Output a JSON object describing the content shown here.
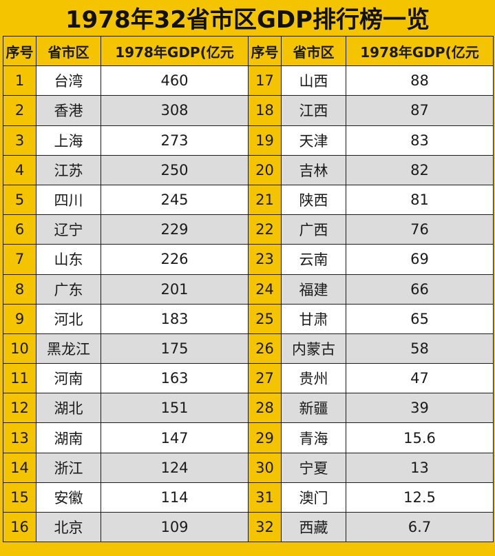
{
  "title": "1978年32省市区GDP排行榜一览",
  "headers": {
    "rank": "序号",
    "province": "省市区",
    "gdp": "1978年GDP(亿元"
  },
  "table": {
    "rows": [
      {
        "left": {
          "rank": "1",
          "province": "台湾",
          "gdp": "460"
        },
        "right": {
          "rank": "17",
          "province": "山西",
          "gdp": "88"
        }
      },
      {
        "left": {
          "rank": "2",
          "province": "香港",
          "gdp": "308"
        },
        "right": {
          "rank": "18",
          "province": "江西",
          "gdp": "87"
        }
      },
      {
        "left": {
          "rank": "3",
          "province": "上海",
          "gdp": "273"
        },
        "right": {
          "rank": "19",
          "province": "天津",
          "gdp": "83"
        }
      },
      {
        "left": {
          "rank": "4",
          "province": "江苏",
          "gdp": "250"
        },
        "right": {
          "rank": "20",
          "province": "吉林",
          "gdp": "82"
        }
      },
      {
        "left": {
          "rank": "5",
          "province": "四川",
          "gdp": "245"
        },
        "right": {
          "rank": "21",
          "province": "陕西",
          "gdp": "81"
        }
      },
      {
        "left": {
          "rank": "6",
          "province": "辽宁",
          "gdp": "229"
        },
        "right": {
          "rank": "22",
          "province": "广西",
          "gdp": "76"
        }
      },
      {
        "left": {
          "rank": "7",
          "province": "山东",
          "gdp": "226"
        },
        "right": {
          "rank": "23",
          "province": "云南",
          "gdp": "69"
        }
      },
      {
        "left": {
          "rank": "8",
          "province": "广东",
          "gdp": "201"
        },
        "right": {
          "rank": "24",
          "province": "福建",
          "gdp": "66"
        }
      },
      {
        "left": {
          "rank": "9",
          "province": "河北",
          "gdp": "183"
        },
        "right": {
          "rank": "25",
          "province": "甘肃",
          "gdp": "65"
        }
      },
      {
        "left": {
          "rank": "10",
          "province": "黑龙江",
          "gdp": "175"
        },
        "right": {
          "rank": "26",
          "province": "内蒙古",
          "gdp": "58"
        }
      },
      {
        "left": {
          "rank": "11",
          "province": "河南",
          "gdp": "163"
        },
        "right": {
          "rank": "27",
          "province": "贵州",
          "gdp": "47"
        }
      },
      {
        "left": {
          "rank": "12",
          "province": "湖北",
          "gdp": "151"
        },
        "right": {
          "rank": "28",
          "province": "新疆",
          "gdp": "39"
        }
      },
      {
        "left": {
          "rank": "13",
          "province": "湖南",
          "gdp": "147"
        },
        "right": {
          "rank": "29",
          "province": "青海",
          "gdp": "15.6"
        }
      },
      {
        "left": {
          "rank": "14",
          "province": "浙江",
          "gdp": "124"
        },
        "right": {
          "rank": "30",
          "province": "宁夏",
          "gdp": "13"
        }
      },
      {
        "left": {
          "rank": "15",
          "province": "安徽",
          "gdp": "114"
        },
        "right": {
          "rank": "31",
          "province": "澳门",
          "gdp": "12.5"
        }
      },
      {
        "left": {
          "rank": "16",
          "province": "北京",
          "gdp": "109"
        },
        "right": {
          "rank": "32",
          "province": "西藏",
          "gdp": "6.7"
        }
      }
    ]
  },
  "colors": {
    "header_bg": "#f5c400",
    "row_light": "#ffffff",
    "row_gray": "#dcdcdc",
    "border": "#1a1a1a"
  }
}
